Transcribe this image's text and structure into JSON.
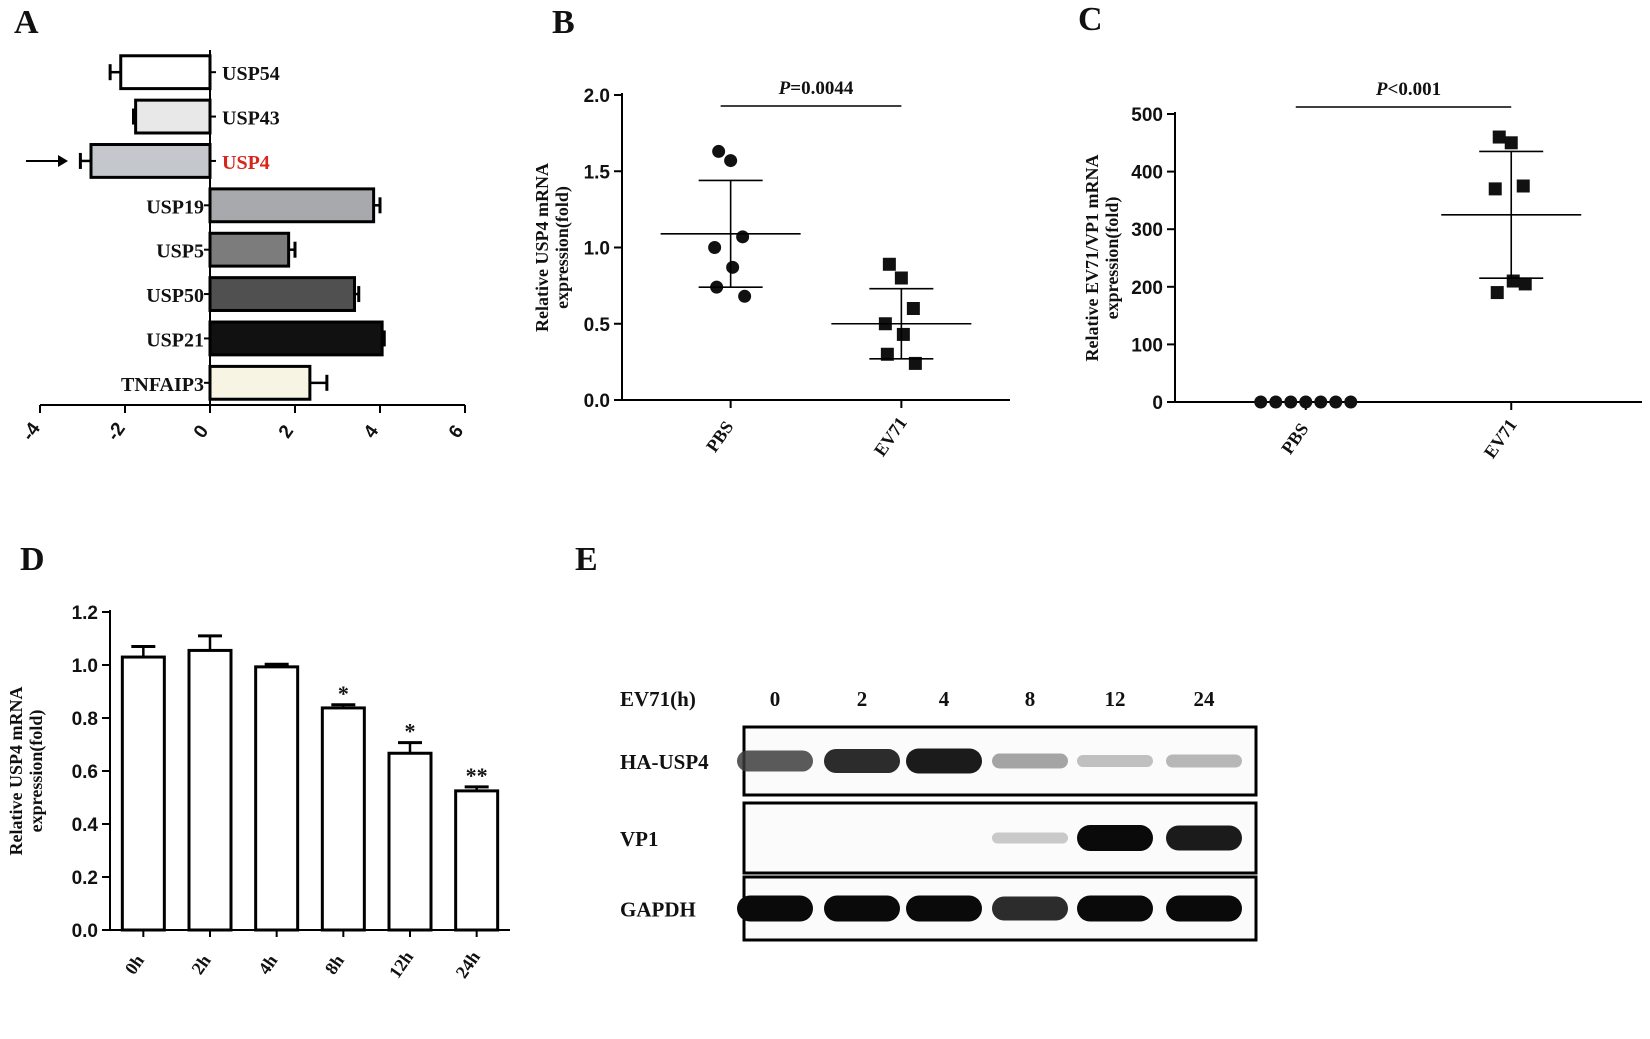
{
  "chart_data": [
    {
      "panel": "A",
      "type": "bar",
      "orientation": "horizontal",
      "categories": [
        "USP54",
        "USP43",
        "USP4",
        "USP19",
        "USP5",
        "USP50",
        "USP21",
        "TNFAIP3"
      ],
      "values": [
        -2.1,
        -1.75,
        -2.8,
        3.85,
        1.85,
        3.4,
        4.05,
        2.35
      ],
      "errors": [
        0.25,
        0.05,
        0.25,
        0.15,
        0.15,
        0.1,
        0.05,
        0.4
      ],
      "colors": [
        "#ffffff",
        "#e8e8e8",
        "#c4c7cc",
        "#a7a9ad",
        "#7c7c7c",
        "#505050",
        "#111111",
        "#f7f4e3"
      ],
      "highlight": {
        "category": "USP4",
        "color": "#d9261c",
        "arrow": true
      },
      "xlim": [
        -4,
        6
      ],
      "xticks": [
        "-4",
        "-2",
        "0",
        "2",
        "4",
        "6"
      ]
    },
    {
      "panel": "B",
      "type": "scatter",
      "ylabel": [
        "Relative USP4 mRNA",
        "expression(fold)"
      ],
      "categories": [
        "PBS",
        "EV71"
      ],
      "series": [
        {
          "category": "PBS",
          "marker": "circle",
          "values": [
            1.63,
            1.57,
            1.0,
            1.07,
            0.87,
            0.74,
            0.68
          ],
          "mean": 1.09,
          "sd": 0.35
        },
        {
          "category": "EV71",
          "marker": "square",
          "values": [
            0.89,
            0.8,
            0.5,
            0.6,
            0.43,
            0.3,
            0.24
          ],
          "mean": 0.5,
          "sd": 0.23
        }
      ],
      "ylim": [
        0,
        2.0
      ],
      "yticks": [
        "0.0",
        "0.5",
        "1.0",
        "1.5",
        "2.0"
      ],
      "pvalue": {
        "label": "P",
        "text": "=0.0044"
      }
    },
    {
      "panel": "C",
      "type": "scatter",
      "ylabel": [
        "Relative EV71/VP1 mRNA",
        "expression(fold)"
      ],
      "categories": [
        "PBS",
        "EV71"
      ],
      "series": [
        {
          "category": "PBS",
          "marker": "circle",
          "values": [
            0,
            0,
            0,
            0,
            0,
            0,
            0
          ]
        },
        {
          "category": "EV71",
          "marker": "square",
          "values": [
            460,
            450,
            370,
            375,
            210,
            190,
            205
          ],
          "mean": 325,
          "sd": 110
        }
      ],
      "ylim": [
        0,
        500
      ],
      "yticks": [
        "0",
        "100",
        "200",
        "300",
        "400",
        "500"
      ],
      "pvalue": {
        "label": "P",
        "text": "<0.001"
      }
    },
    {
      "panel": "D",
      "type": "bar",
      "ylabel": [
        "Relative USP4 mRNA",
        "expression(fold)"
      ],
      "categories": [
        "0h",
        "2h",
        "4h",
        "8h",
        "12h",
        "24h"
      ],
      "values": [
        1.03,
        1.055,
        0.993,
        0.838,
        0.667,
        0.525
      ],
      "errors": [
        0.04,
        0.055,
        0.01,
        0.012,
        0.04,
        0.015
      ],
      "significance": [
        "",
        "",
        "",
        "*",
        "*",
        "**"
      ],
      "ylim": [
        0,
        1.2
      ],
      "yticks": [
        "0.0",
        "0.2",
        "0.4",
        "0.6",
        "0.8",
        "1.0",
        "1.2"
      ]
    }
  ],
  "panel_labels": [
    "A",
    "B",
    "C",
    "D",
    "E"
  ],
  "western_blot": {
    "condition_label": "EV71(h)",
    "timepoints": [
      "0",
      "2",
      "4",
      "8",
      "12",
      "24"
    ],
    "rows": [
      {
        "label": "HA-USP4",
        "intensity": [
          0.75,
          0.9,
          0.95,
          0.45,
          0.3,
          0.35
        ]
      },
      {
        "label": "VP1",
        "intensity": [
          0.0,
          0.0,
          0.0,
          0.25,
          1.0,
          0.95
        ]
      },
      {
        "label": "GAPDH",
        "intensity": [
          1.0,
          1.0,
          1.0,
          0.9,
          1.0,
          1.0
        ]
      }
    ]
  }
}
